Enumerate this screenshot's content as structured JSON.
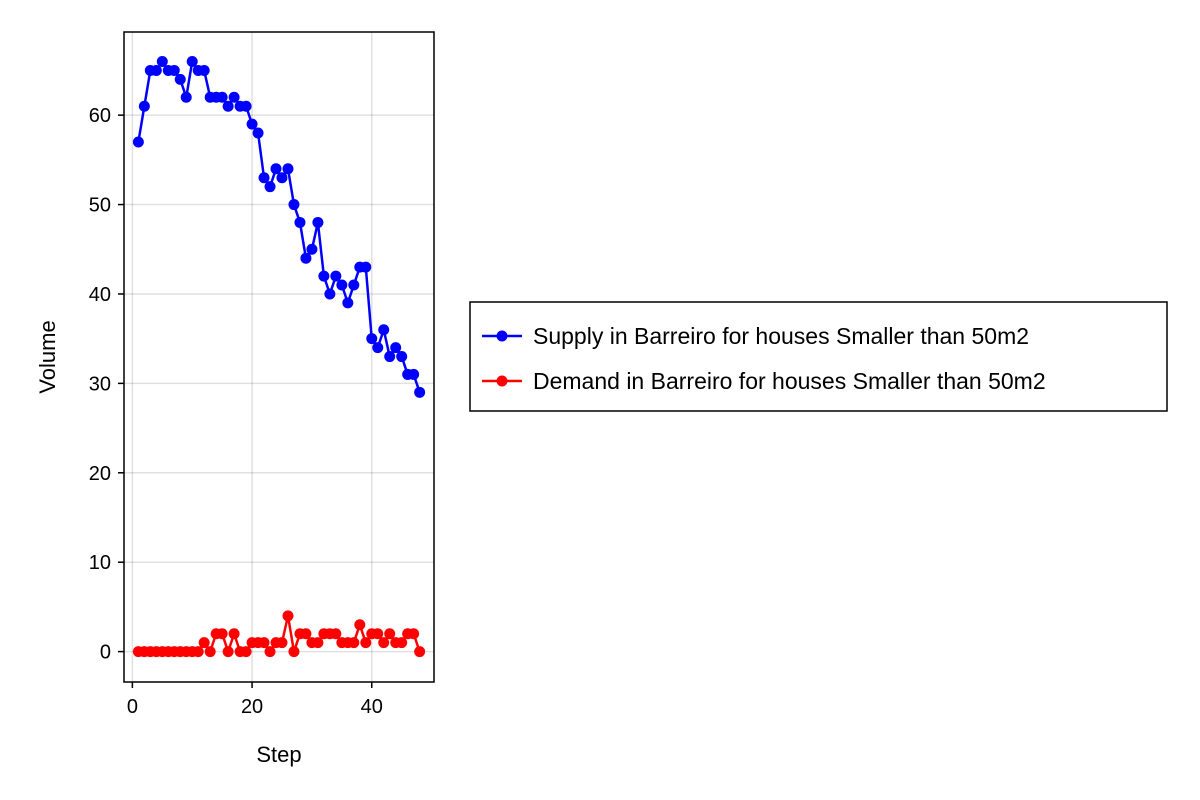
{
  "chart_data": {
    "type": "line",
    "xlabel": "Step",
    "ylabel": "Volume",
    "xlim": [
      -1.4,
      50.4
    ],
    "ylim": [
      -3.4,
      69.3
    ],
    "xticks": [
      0,
      20,
      40
    ],
    "yticks": [
      0,
      10,
      20,
      30,
      40,
      50,
      60
    ],
    "grid": true,
    "legend_position": "right",
    "x": [
      1,
      2,
      3,
      4,
      5,
      6,
      7,
      8,
      9,
      10,
      11,
      12,
      13,
      14,
      15,
      16,
      17,
      18,
      19,
      20,
      21,
      22,
      23,
      24,
      25,
      26,
      27,
      28,
      29,
      30,
      31,
      32,
      33,
      34,
      35,
      36,
      37,
      38,
      39,
      40,
      41,
      42,
      43,
      44,
      45,
      46,
      47,
      48
    ],
    "series": [
      {
        "name": "Supply in Barreiro for houses Smaller than 50m2",
        "color": "#0000ff",
        "values": [
          57,
          61,
          65,
          65,
          66,
          65,
          65,
          64,
          62,
          66,
          65,
          65,
          62,
          62,
          62,
          61,
          62,
          61,
          61,
          59,
          58,
          53,
          52,
          54,
          53,
          54,
          50,
          48,
          44,
          45,
          48,
          42,
          40,
          42,
          41,
          39,
          41,
          43,
          43,
          35,
          34,
          36,
          33,
          34,
          33,
          31,
          31,
          29
        ]
      },
      {
        "name": "Demand in Barreiro for houses Smaller than 50m2",
        "color": "#ff0000",
        "values": [
          0,
          0,
          0,
          0,
          0,
          0,
          0,
          0,
          0,
          0,
          0,
          1,
          0,
          2,
          2,
          0,
          2,
          0,
          0,
          1,
          1,
          1,
          0,
          1,
          1,
          4,
          0,
          2,
          2,
          1,
          1,
          2,
          2,
          2,
          1,
          1,
          1,
          3,
          1,
          2,
          2,
          1,
          2,
          1,
          1,
          2,
          2,
          0
        ]
      }
    ]
  }
}
